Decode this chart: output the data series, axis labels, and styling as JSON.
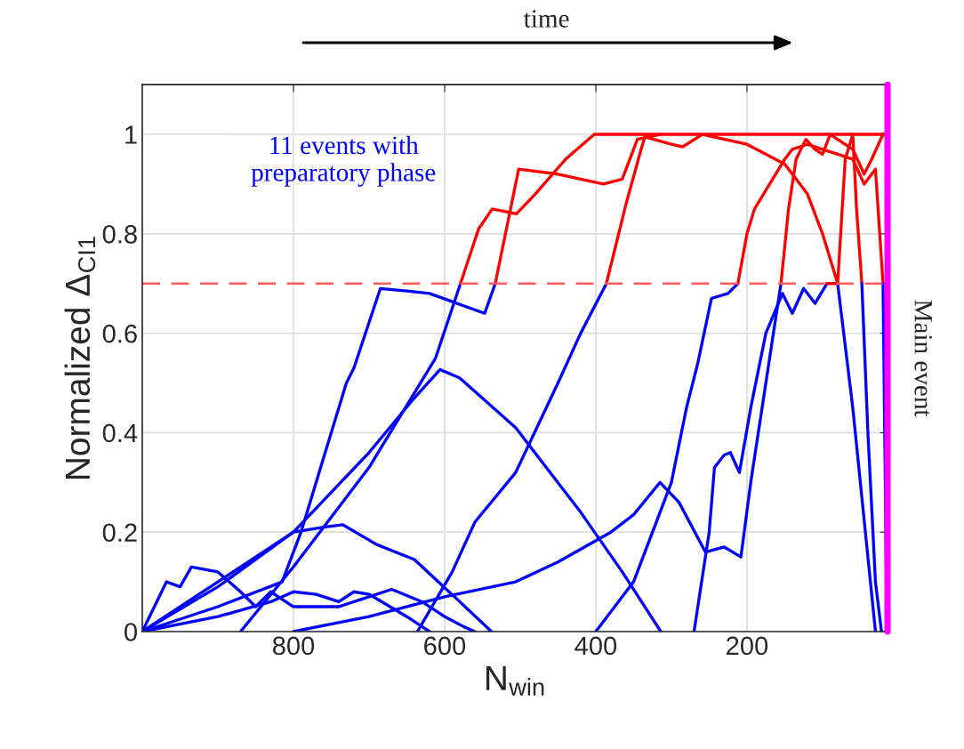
{
  "chart_data": {
    "type": "line",
    "xlabel": "N$_{win}$",
    "ylabel": "Normalized Δ$_{CI1}$",
    "xlim": [
      1000,
      14
    ],
    "ylim": [
      0,
      1.1
    ],
    "xticks": [
      800,
      600,
      400,
      200
    ],
    "yticks": [
      0,
      0.2,
      0.4,
      0.6,
      0.8,
      1
    ],
    "grid": true,
    "marker": "none",
    "line_style": "solid",
    "annotations": [
      "time",
      "11 events with\npreparatory phase"
    ],
    "ref_lines": [
      {
        "axis": "y",
        "value": 0.7,
        "color": "#ff5a5a",
        "line_style": "dashed"
      },
      {
        "axis": "x",
        "value": 14,
        "label": "Main event",
        "color": "#ff00ff",
        "line_style": "solid"
      }
    ],
    "series": [
      {
        "color": "#0000ff",
        "x": [
          1000,
          900,
          815,
          790,
          760,
          730,
          720,
          685,
          650,
          620,
          547,
          533
        ],
        "values": [
          0,
          0.05,
          0.1,
          0.2,
          0.35,
          0.5,
          0.53,
          0.69,
          0.685,
          0.68,
          0.64,
          0.7
        ]
      },
      {
        "color": "#ff0000",
        "x": [
          533,
          502,
          450,
          390,
          365,
          345,
          315
        ],
        "values": [
          0.7,
          0.93,
          0.92,
          0.9,
          0.91,
          0.99,
          1.0
        ]
      },
      {
        "color": "#0000ff",
        "x": [
          870,
          800,
          700,
          612,
          579
        ],
        "values": [
          0,
          0.13,
          0.33,
          0.55,
          0.7
        ]
      },
      {
        "color": "#ff0000",
        "x": [
          579,
          555,
          537,
          505,
          480,
          440,
          402,
          14
        ],
        "values": [
          0.7,
          0.81,
          0.85,
          0.84,
          0.88,
          0.95,
          1.0,
          1.0
        ]
      },
      {
        "color": "#0000ff",
        "x": [
          1000,
          900,
          800,
          700,
          640,
          606,
          580,
          506,
          420,
          365,
          314
        ],
        "values": [
          0,
          0.09,
          0.2,
          0.36,
          0.47,
          0.527,
          0.51,
          0.41,
          0.24,
          0.12,
          0
        ]
      },
      {
        "color": "#0000ff",
        "x": [
          1000,
          900,
          800,
          760,
          735,
          690,
          640,
          592,
          538
        ],
        "values": [
          0,
          0.1,
          0.2,
          0.21,
          0.215,
          0.175,
          0.145,
          0.077,
          0
        ]
      },
      {
        "color": "#0000ff",
        "x": [
          1000,
          968,
          950,
          935,
          900,
          870,
          850,
          830,
          800,
          740,
          700,
          670,
          630,
          600,
          575,
          560
        ],
        "values": [
          0,
          0.1,
          0.09,
          0.13,
          0.12,
          0.08,
          0.05,
          0.08,
          0.05,
          0.05,
          0.07,
          0.085,
          0.06,
          0.03,
          0.01,
          0
        ]
      },
      {
        "color": "#0000ff",
        "x": [
          1000,
          900,
          830,
          800,
          770,
          740,
          720,
          700,
          650,
          630,
          620
        ],
        "values": [
          0,
          0.03,
          0.06,
          0.08,
          0.075,
          0.06,
          0.08,
          0.075,
          0.03,
          0.01,
          0
        ]
      },
      {
        "color": "#0000ff",
        "x": [
          636,
          590,
          560,
          506,
          450,
          420,
          386
        ],
        "values": [
          0,
          0.12,
          0.22,
          0.32,
          0.5,
          0.6,
          0.7
        ]
      },
      {
        "color": "#ff0000",
        "x": [
          386,
          360,
          340,
          335,
          300,
          285,
          259,
          200,
          150,
          120,
          100,
          80
        ],
        "values": [
          0.7,
          0.86,
          0.97,
          0.995,
          0.98,
          0.975,
          1.0,
          0.98,
          0.94,
          0.88,
          0.8,
          0.7
        ]
      },
      {
        "color": "#0000ff",
        "x": [
          80,
          60,
          40,
          30
        ],
        "values": [
          0.7,
          0.45,
          0.15,
          0
        ]
      },
      {
        "color": "#0000ff",
        "x": [
          800,
          700,
          600,
          506,
          450,
          380,
          350,
          315,
          290,
          255,
          230,
          208,
          195,
          180,
          165,
          155
        ],
        "values": [
          0,
          0.03,
          0.07,
          0.1,
          0.14,
          0.2,
          0.235,
          0.3,
          0.26,
          0.16,
          0.17,
          0.15,
          0.3,
          0.45,
          0.6,
          0.7
        ]
      },
      {
        "color": "#ff0000",
        "x": [
          155,
          145,
          135,
          122,
          110,
          100,
          90,
          60,
          45,
          35,
          20,
          14
        ],
        "values": [
          0.7,
          0.85,
          0.95,
          0.99,
          0.97,
          0.96,
          1.0,
          0.97,
          0.92,
          0.95,
          1.0,
          1.0
        ]
      },
      {
        "color": "#0000ff",
        "x": [
          400,
          350,
          300,
          280,
          265,
          247,
          225,
          212
        ],
        "values": [
          0,
          0.1,
          0.3,
          0.45,
          0.54,
          0.67,
          0.68,
          0.7
        ]
      },
      {
        "color": "#ff0000",
        "x": [
          212,
          200,
          190,
          170,
          150,
          140,
          120,
          100,
          80,
          60,
          45,
          30,
          20
        ],
        "values": [
          0.7,
          0.8,
          0.85,
          0.9,
          0.95,
          0.97,
          0.98,
          0.97,
          0.96,
          0.95,
          0.9,
          0.93,
          0.7
        ]
      },
      {
        "color": "#0000ff",
        "x": [
          20,
          17,
          15
        ],
        "values": [
          0.7,
          0.3,
          0
        ]
      },
      {
        "color": "#0000ff",
        "x": [
          270,
          250,
          243,
          230,
          222,
          210,
          195,
          175,
          153,
          140,
          125,
          110,
          94
        ],
        "values": [
          0,
          0.2,
          0.33,
          0.355,
          0.36,
          0.32,
          0.45,
          0.6,
          0.68,
          0.64,
          0.69,
          0.66,
          0.7
        ]
      },
      {
        "color": "#ff0000",
        "x": [
          94,
          80,
          70,
          60,
          55,
          48
        ],
        "values": [
          0.7,
          0.7,
          0.95,
          1.0,
          0.85,
          0.7
        ]
      },
      {
        "color": "#0000ff",
        "x": [
          48,
          40,
          30,
          22
        ],
        "values": [
          0.7,
          0.4,
          0.1,
          0
        ]
      }
    ]
  }
}
